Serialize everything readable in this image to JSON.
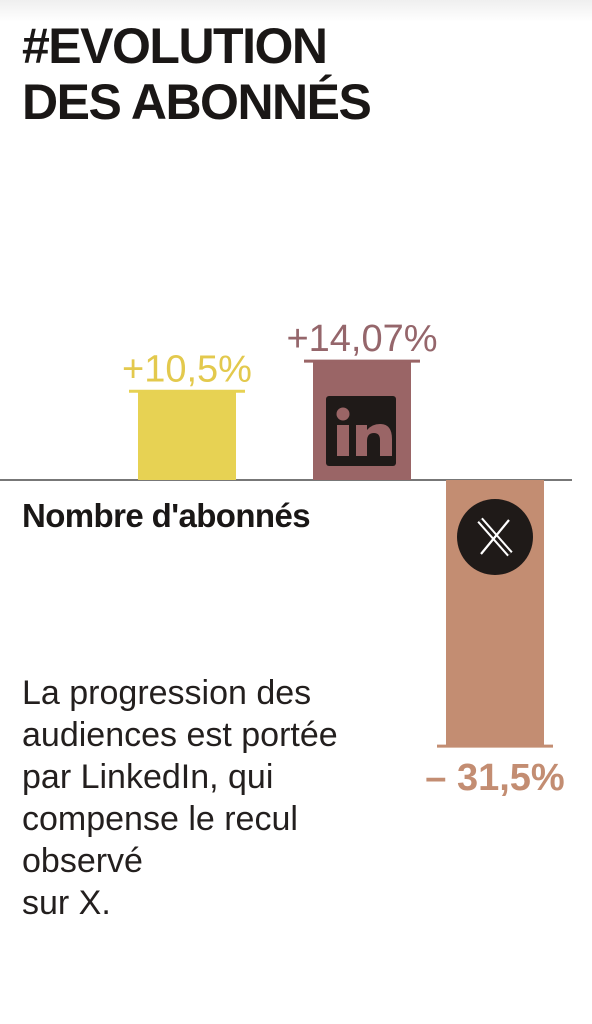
{
  "title": {
    "line1": "#EVOLUTION",
    "line2": "DES ABONNÉS"
  },
  "chart_data": {
    "type": "bar",
    "ylabel": "Nombre d'abonnés",
    "categories": [
      "",
      "LinkedIn",
      "X"
    ],
    "values": [
      10.5,
      14.07,
      -31.5
    ],
    "data_labels": [
      "+10,5%",
      "+14,07%",
      "– 31,5%"
    ],
    "icons": [
      "",
      "linkedin-icon",
      "x-icon"
    ],
    "colors": [
      "#e7d253",
      "#9a6566",
      "#c38d72"
    ],
    "label_colors": [
      "#e3c94d",
      "#95666b",
      "#c38d72"
    ],
    "baseline_color": "#777777",
    "ylim": [
      -31.5,
      14.07
    ],
    "grid": false
  },
  "caption": {
    "lines": [
      "La progression des",
      "audiences est portée",
      "par LinkedIn, qui",
      "compense le recul",
      "observé",
      "sur X."
    ]
  }
}
